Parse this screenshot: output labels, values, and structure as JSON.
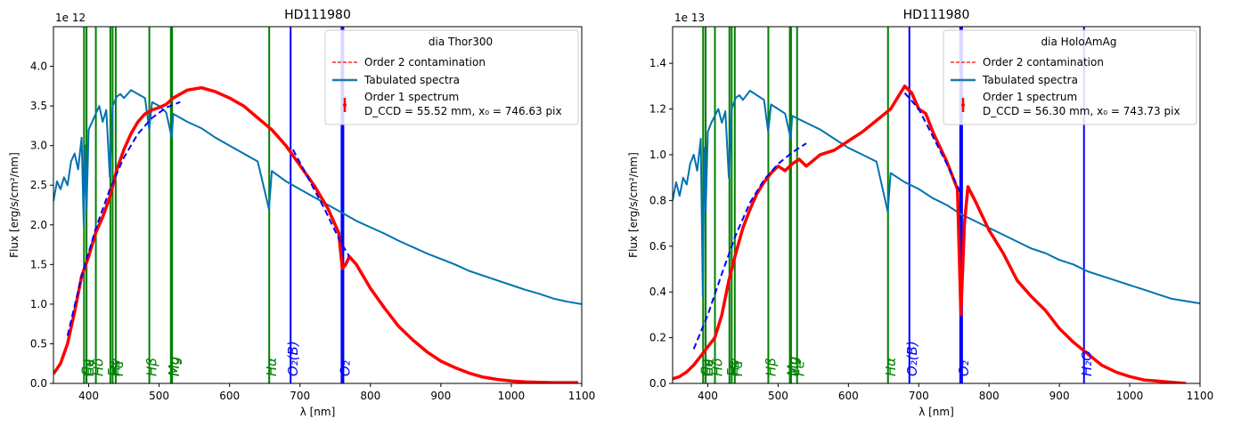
{
  "chart_data": [
    {
      "type": "line",
      "title": "HD111980",
      "xlabel": "λ [nm]",
      "ylabel": "Flux [erg/s/cm²/nm]",
      "exponent_label": "1e  12",
      "xlim": [
        350,
        1100
      ],
      "ylim": [
        0.0,
        4.5
      ],
      "xticks": [
        400,
        500,
        600,
        700,
        800,
        900,
        1000,
        1100
      ],
      "yticks": [
        0.0,
        0.5,
        1.0,
        1.5,
        2.0,
        2.5,
        3.0,
        3.5,
        4.0
      ],
      "grid": false,
      "legend": {
        "placement": "top-right",
        "title": "dia Thor300",
        "entries": [
          {
            "label": "Order 2 contamination",
            "style": "dashed",
            "color": "#ff0000"
          },
          {
            "label": "Tabulated spectra",
            "style": "solid",
            "color": "#1f77b4"
          },
          {
            "label": "Order 1 spectrum",
            "label2": "D_CCD = 55.52 mm, x₀ = 746.63 pix",
            "style": "errorbar",
            "color": "#ff0000"
          }
        ]
      },
      "series": [
        {
          "name": "Tabulated spectra",
          "color": "#0072b2",
          "x": [
            350,
            355,
            360,
            365,
            370,
            375,
            380,
            385,
            390,
            393,
            395,
            397,
            400,
            405,
            410,
            415,
            420,
            425,
            430,
            434,
            440,
            445,
            450,
            460,
            470,
            480,
            486,
            490,
            500,
            510,
            518,
            520,
            540,
            560,
            580,
            600,
            620,
            640,
            656,
            660,
            680,
            700,
            720,
            740,
            760,
            780,
            800,
            820,
            840,
            860,
            880,
            900,
            920,
            940,
            960,
            980,
            1000,
            1020,
            1040,
            1060,
            1080,
            1100
          ],
          "y": [
            2.3,
            2.55,
            2.45,
            2.6,
            2.5,
            2.8,
            2.9,
            2.7,
            3.1,
            2.0,
            3.0,
            2.2,
            3.2,
            3.3,
            3.4,
            3.5,
            3.3,
            3.45,
            2.6,
            3.5,
            3.62,
            3.65,
            3.6,
            3.7,
            3.65,
            3.6,
            3.2,
            3.55,
            3.5,
            3.42,
            3.1,
            3.4,
            3.3,
            3.22,
            3.1,
            3.0,
            2.9,
            2.8,
            2.2,
            2.68,
            2.55,
            2.45,
            2.35,
            2.25,
            2.15,
            2.05,
            1.97,
            1.89,
            1.8,
            1.72,
            1.64,
            1.57,
            1.5,
            1.42,
            1.36,
            1.3,
            1.24,
            1.18,
            1.13,
            1.07,
            1.03,
            1.0
          ]
        },
        {
          "name": "Order 1 spectrum",
          "color": "#ff0000",
          "x": [
            350,
            360,
            370,
            380,
            390,
            400,
            410,
            420,
            430,
            440,
            450,
            460,
            470,
            480,
            490,
            500,
            510,
            520,
            540,
            560,
            580,
            600,
            620,
            640,
            660,
            680,
            700,
            720,
            740,
            755,
            760,
            765,
            770,
            780,
            800,
            820,
            840,
            860,
            880,
            900,
            920,
            940,
            960,
            980,
            1000,
            1020,
            1040,
            1060,
            1080,
            1095
          ],
          "y": [
            0.12,
            0.25,
            0.5,
            0.9,
            1.35,
            1.6,
            1.9,
            2.1,
            2.35,
            2.7,
            2.95,
            3.15,
            3.3,
            3.4,
            3.45,
            3.48,
            3.52,
            3.6,
            3.7,
            3.73,
            3.68,
            3.6,
            3.5,
            3.35,
            3.2,
            3.0,
            2.75,
            2.5,
            2.2,
            1.9,
            1.45,
            1.5,
            1.6,
            1.5,
            1.2,
            0.95,
            0.72,
            0.55,
            0.4,
            0.28,
            0.2,
            0.13,
            0.08,
            0.05,
            0.03,
            0.02,
            0.015,
            0.01,
            0.01,
            0.01
          ]
        },
        {
          "name": "Order 2 contamination",
          "color": "#0000ff",
          "x": [
            370,
            390,
            410,
            430,
            450,
            470,
            490,
            510,
            530
          ],
          "y": [
            0.6,
            1.35,
            1.95,
            2.45,
            2.85,
            3.15,
            3.35,
            3.48,
            3.55
          ]
        },
        {
          "name": "Order 2 contamination",
          "color": "#0000ff",
          "x": [
            690,
            705,
            720,
            735,
            750,
            760,
            770
          ],
          "y": [
            2.95,
            2.7,
            2.45,
            2.2,
            1.92,
            1.75,
            1.6
          ]
        }
      ],
      "lines": [
        {
          "x": 393.4,
          "color": "green",
          "label": "Ca"
        },
        {
          "x": 396.8,
          "color": "green",
          "label": "Ca"
        },
        {
          "x": 397.0,
          "color": "green",
          "label": "Hε"
        },
        {
          "x": 410.2,
          "color": "green",
          "label": "Hδ"
        },
        {
          "x": 430.8,
          "color": "green",
          "label": "Fe"
        },
        {
          "x": 434.0,
          "color": "green",
          "label": "Hγ"
        },
        {
          "x": 438.4,
          "color": "green",
          "label": "Fe"
        },
        {
          "x": 486.1,
          "color": "green",
          "label": "Hβ"
        },
        {
          "x": 516.7,
          "color": "green",
          "label": "Mg"
        },
        {
          "x": 518.4,
          "color": "green",
          "label": "Mg"
        },
        {
          "x": 656.3,
          "color": "green",
          "label": "Hα"
        },
        {
          "x": 686.7,
          "color": "blue",
          "label": "O₂(B)"
        },
        {
          "x": 760.3,
          "color": "blue",
          "label": "O₂"
        }
      ]
    },
    {
      "type": "line",
      "title": "HD111980",
      "xlabel": "λ [nm]",
      "ylabel": "Flux [erg/s/cm²/nm]",
      "exponent_label": "1e  13",
      "xlim": [
        350,
        1100
      ],
      "ylim": [
        0.0,
        1.56
      ],
      "xticks": [
        400,
        500,
        600,
        700,
        800,
        900,
        1000,
        1100
      ],
      "yticks": [
        0.0,
        0.2,
        0.4,
        0.6,
        0.8,
        1.0,
        1.2,
        1.4
      ],
      "grid": false,
      "legend": {
        "placement": "top-right",
        "title": "dia HoloAmAg",
        "entries": [
          {
            "label": "Order 2 contamination",
            "style": "dashed",
            "color": "#ff0000"
          },
          {
            "label": "Tabulated spectra",
            "style": "solid",
            "color": "#1f77b4"
          },
          {
            "label": "Order 1 spectrum",
            "label2": "D_CCD = 56.30 mm, x₀ = 743.73 pix",
            "style": "errorbar",
            "color": "#ff0000"
          }
        ]
      },
      "series": [
        {
          "name": "Tabulated spectra",
          "color": "#0072b2",
          "x": [
            350,
            355,
            360,
            365,
            370,
            375,
            380,
            385,
            390,
            393,
            395,
            397,
            400,
            405,
            410,
            415,
            420,
            425,
            430,
            434,
            440,
            445,
            450,
            460,
            470,
            480,
            486,
            490,
            500,
            510,
            518,
            520,
            540,
            560,
            580,
            600,
            620,
            640,
            656,
            660,
            680,
            700,
            720,
            740,
            760,
            780,
            800,
            820,
            840,
            860,
            880,
            900,
            920,
            940,
            960,
            980,
            1000,
            1020,
            1040,
            1060,
            1080,
            1100
          ],
          "y": [
            0.8,
            0.88,
            0.82,
            0.9,
            0.87,
            0.96,
            1.0,
            0.93,
            1.07,
            0.38,
            1.03,
            0.75,
            1.1,
            1.14,
            1.17,
            1.2,
            1.14,
            1.19,
            0.9,
            1.2,
            1.25,
            1.26,
            1.24,
            1.28,
            1.26,
            1.24,
            1.1,
            1.22,
            1.2,
            1.18,
            1.07,
            1.17,
            1.14,
            1.11,
            1.07,
            1.03,
            1.0,
            0.97,
            0.75,
            0.92,
            0.88,
            0.85,
            0.81,
            0.78,
            0.74,
            0.71,
            0.68,
            0.65,
            0.62,
            0.59,
            0.57,
            0.54,
            0.52,
            0.49,
            0.47,
            0.45,
            0.43,
            0.41,
            0.39,
            0.37,
            0.36,
            0.35
          ]
        },
        {
          "name": "Order 1 spectrum",
          "color": "#ff0000",
          "x": [
            350,
            360,
            370,
            380,
            390,
            400,
            410,
            420,
            430,
            440,
            450,
            460,
            470,
            480,
            490,
            500,
            510,
            520,
            530,
            540,
            560,
            580,
            600,
            620,
            640,
            660,
            670,
            680,
            690,
            700,
            710,
            720,
            740,
            755,
            760,
            765,
            770,
            780,
            800,
            820,
            840,
            860,
            880,
            900,
            920,
            940,
            960,
            980,
            1000,
            1020,
            1040,
            1060,
            1080
          ],
          "y": [
            0.02,
            0.03,
            0.05,
            0.08,
            0.12,
            0.16,
            0.2,
            0.3,
            0.45,
            0.57,
            0.68,
            0.76,
            0.83,
            0.88,
            0.92,
            0.95,
            0.93,
            0.96,
            0.98,
            0.95,
            1.0,
            1.02,
            1.06,
            1.1,
            1.15,
            1.2,
            1.25,
            1.3,
            1.27,
            1.2,
            1.18,
            1.1,
            0.97,
            0.85,
            0.3,
            0.7,
            0.86,
            0.8,
            0.67,
            0.57,
            0.45,
            0.38,
            0.32,
            0.24,
            0.18,
            0.13,
            0.08,
            0.05,
            0.03,
            0.015,
            0.01,
            0.005,
            0.0
          ]
        },
        {
          "name": "Order 2 contamination",
          "color": "#0000ff",
          "x": [
            380,
            400,
            420,
            440,
            460,
            480,
            500,
            520,
            540
          ],
          "y": [
            0.15,
            0.3,
            0.48,
            0.65,
            0.79,
            0.89,
            0.96,
            1.01,
            1.05
          ]
        },
        {
          "name": "Order 2 contamination",
          "color": "#0000ff",
          "x": [
            680,
            700,
            720,
            740,
            760
          ],
          "y": [
            1.27,
            1.2,
            1.08,
            0.96,
            0.83
          ]
        }
      ],
      "lines": [
        {
          "x": 393.4,
          "color": "green",
          "label": "Ca"
        },
        {
          "x": 396.8,
          "color": "green",
          "label": "Ca"
        },
        {
          "x": 397.0,
          "color": "green",
          "label": "Hε"
        },
        {
          "x": 410.2,
          "color": "green",
          "label": "Hδ"
        },
        {
          "x": 430.8,
          "color": "green",
          "label": "Fe"
        },
        {
          "x": 434.0,
          "color": "green",
          "label": "Hγ"
        },
        {
          "x": 438.4,
          "color": "green",
          "label": "Fe"
        },
        {
          "x": 486.1,
          "color": "green",
          "label": "Hβ"
        },
        {
          "x": 516.7,
          "color": "green",
          "label": "Mg"
        },
        {
          "x": 518.4,
          "color": "green",
          "label": "Mg"
        },
        {
          "x": 527.0,
          "color": "green",
          "label": "Fe"
        },
        {
          "x": 656.3,
          "color": "green",
          "label": "Hα"
        },
        {
          "x": 686.7,
          "color": "blue",
          "label": "O₂(B)"
        },
        {
          "x": 760.3,
          "color": "blue",
          "label": "O₂"
        },
        {
          "x": 935.0,
          "color": "blue",
          "label": "H₂O"
        }
      ]
    }
  ]
}
